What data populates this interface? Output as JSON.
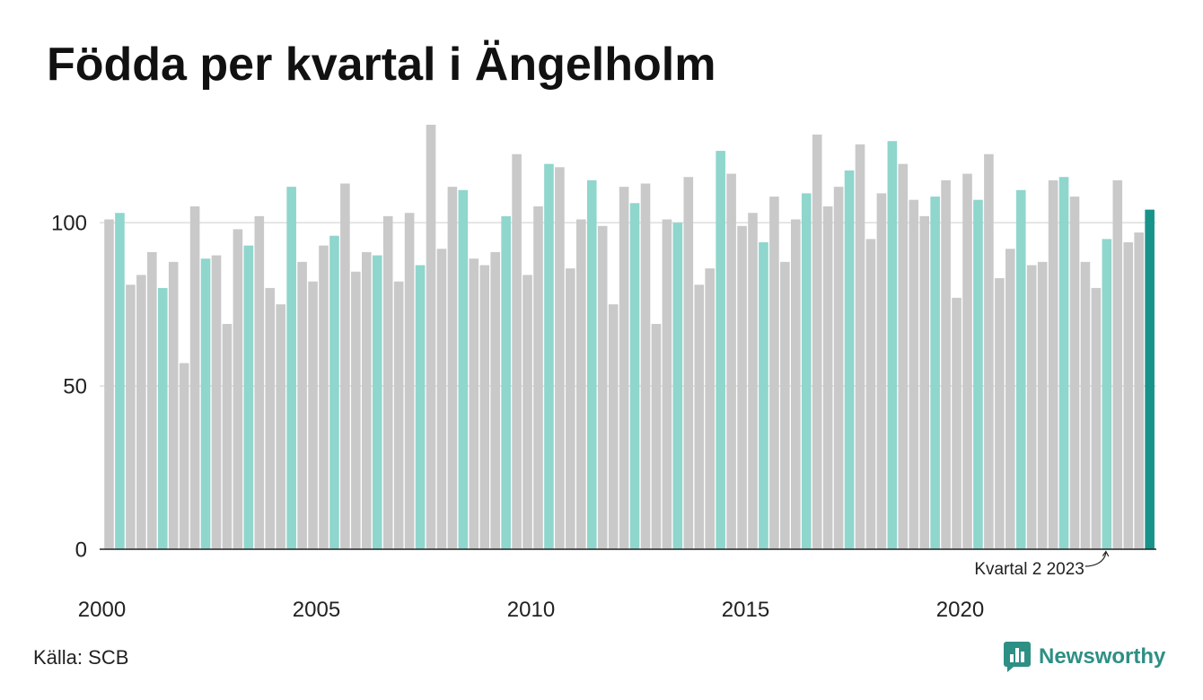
{
  "chart_data": {
    "type": "bar",
    "title": "Födda per kvartal i Ängelholm",
    "x": [
      "2000-Q1",
      "2000-Q2",
      "2000-Q3",
      "2000-Q4",
      "2001-Q1",
      "2001-Q2",
      "2001-Q3",
      "2001-Q4",
      "2002-Q1",
      "2002-Q2",
      "2002-Q3",
      "2002-Q4",
      "2003-Q1",
      "2003-Q2",
      "2003-Q3",
      "2003-Q4",
      "2004-Q1",
      "2004-Q2",
      "2004-Q3",
      "2004-Q4",
      "2005-Q1",
      "2005-Q2",
      "2005-Q3",
      "2005-Q4",
      "2006-Q1",
      "2006-Q2",
      "2006-Q3",
      "2006-Q4",
      "2007-Q1",
      "2007-Q2",
      "2007-Q3",
      "2007-Q4",
      "2008-Q1",
      "2008-Q2",
      "2008-Q3",
      "2008-Q4",
      "2009-Q1",
      "2009-Q2",
      "2009-Q3",
      "2009-Q4",
      "2010-Q1",
      "2010-Q2",
      "2010-Q3",
      "2010-Q4",
      "2011-Q1",
      "2011-Q2",
      "2011-Q3",
      "2011-Q4",
      "2012-Q1",
      "2012-Q2",
      "2012-Q3",
      "2012-Q4",
      "2013-Q1",
      "2013-Q2",
      "2013-Q3",
      "2013-Q4",
      "2014-Q1",
      "2014-Q2",
      "2014-Q3",
      "2014-Q4",
      "2015-Q1",
      "2015-Q2",
      "2015-Q3",
      "2015-Q4",
      "2016-Q1",
      "2016-Q2",
      "2016-Q3",
      "2016-Q4",
      "2017-Q1",
      "2017-Q2",
      "2017-Q3",
      "2017-Q4",
      "2018-Q1",
      "2018-Q2",
      "2018-Q3",
      "2018-Q4",
      "2019-Q1",
      "2019-Q2",
      "2019-Q3",
      "2019-Q4",
      "2020-Q1",
      "2020-Q2",
      "2020-Q3",
      "2020-Q4",
      "2021-Q1",
      "2021-Q2",
      "2021-Q3",
      "2021-Q4",
      "2022-Q1",
      "2022-Q2",
      "2022-Q3",
      "2022-Q4",
      "2023-Q1",
      "2023-Q2",
      "2023-Q3",
      "2023-Q4",
      "2024-Q1",
      "2024-Q2"
    ],
    "values": [
      101,
      103,
      81,
      84,
      91,
      80,
      88,
      57,
      105,
      89,
      90,
      69,
      98,
      93,
      102,
      80,
      75,
      111,
      88,
      82,
      93,
      96,
      112,
      85,
      91,
      90,
      102,
      82,
      103,
      87,
      130,
      92,
      111,
      110,
      89,
      87,
      91,
      102,
      121,
      84,
      105,
      118,
      117,
      86,
      101,
      113,
      99,
      75,
      111,
      106,
      112,
      69,
      101,
      100,
      114,
      81,
      86,
      122,
      115,
      99,
      103,
      94,
      108,
      88,
      101,
      109,
      127,
      105,
      111,
      116,
      124,
      95,
      109,
      125,
      118,
      107,
      102,
      108,
      113,
      77,
      115,
      107,
      121,
      83,
      92,
      110,
      87,
      88,
      113,
      114,
      108,
      88,
      80,
      95,
      113,
      94,
      97,
      104
    ],
    "xticks": [
      "2000",
      "2005",
      "2010",
      "2015",
      "2020"
    ],
    "yticks": [
      0,
      50,
      100
    ],
    "ylim": [
      0,
      130
    ],
    "grid": true,
    "annotations": [
      {
        "text": "Kvartal 2 2023",
        "x": "2023-Q2"
      }
    ],
    "colors": {
      "bar": "#c9c9c9",
      "same_quarter": "#8fd6cd",
      "latest": "#17938a",
      "grid": "#dddddd",
      "axis": "#222222"
    }
  },
  "source": "Källa: SCB",
  "branding": {
    "name": "Newsworthy",
    "color": "#2e8f85",
    "icon": "newsworthy-logo-icon"
  }
}
